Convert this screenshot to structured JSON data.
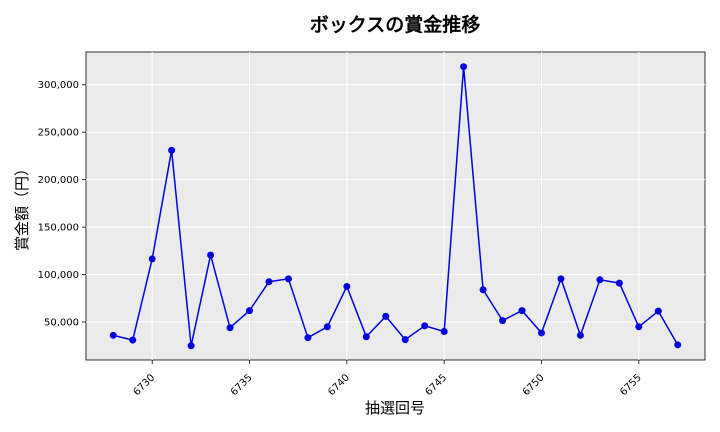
{
  "chart_data": {
    "type": "line",
    "title": "ボックスの賞金推移",
    "xlabel": "抽選回号",
    "ylabel": "賞金額（円）",
    "x": [
      6728,
      6729,
      6730,
      6731,
      6732,
      6733,
      6734,
      6735,
      6736,
      6737,
      6738,
      6739,
      6740,
      6741,
      6742,
      6743,
      6744,
      6745,
      6746,
      6747,
      6748,
      6749,
      6750,
      6751,
      6752,
      6753,
      6754,
      6755,
      6756,
      6757
    ],
    "series": [
      {
        "values": [
          36000,
          31000,
          116500,
          231000,
          25000,
          120500,
          44000,
          62000,
          92500,
          95500,
          33500,
          45000,
          87500,
          34500,
          56000,
          31500,
          46000,
          40000,
          319000,
          84000,
          51500,
          62000,
          38500,
          95500,
          36000,
          94500,
          91000,
          45000,
          61500,
          26000
        ],
        "color": "#0000dd"
      }
    ],
    "xlim": [
      6726.6,
      6758.4
    ],
    "ylim": [
      10000,
      334500
    ],
    "xticks": [
      6730,
      6735,
      6740,
      6745,
      6750,
      6755
    ],
    "yticks": [
      50000,
      100000,
      150000,
      200000,
      250000,
      300000
    ],
    "xtick_labels": [
      "6730",
      "6735",
      "6740",
      "6745",
      "6750",
      "6755"
    ],
    "ytick_labels": [
      "50,000",
      "100,000",
      "150,000",
      "200,000",
      "250,000",
      "300,000"
    ],
    "grid": true,
    "background_color": "#ebebeb",
    "grid_color": "#ffffff"
  }
}
